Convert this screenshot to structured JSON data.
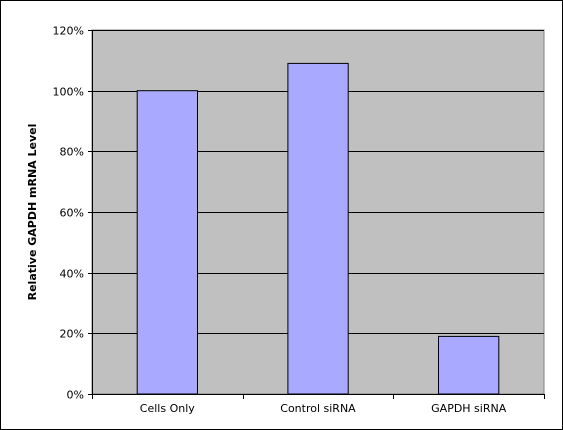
{
  "chart_data": {
    "type": "bar",
    "categories": [
      "Cells Only",
      "Control siRNA",
      "GAPDH siRNA"
    ],
    "values": [
      100,
      109,
      19
    ],
    "ylabel": "Relative GAPDH mRNA Level",
    "xlabel": "",
    "title": "",
    "ylim": [
      0,
      120
    ],
    "y_ticks": [
      0,
      20,
      40,
      60,
      80,
      100,
      120
    ],
    "y_tick_labels": [
      "0%",
      "20%",
      "40%",
      "60%",
      "80%",
      "100%",
      "120%"
    ],
    "grid": true,
    "legend": "none",
    "colors": {
      "bar_fill": "#a9aaff",
      "bar_stroke": "#000000",
      "plot_background": "#c0c0c0",
      "gridline": "#000000"
    }
  }
}
